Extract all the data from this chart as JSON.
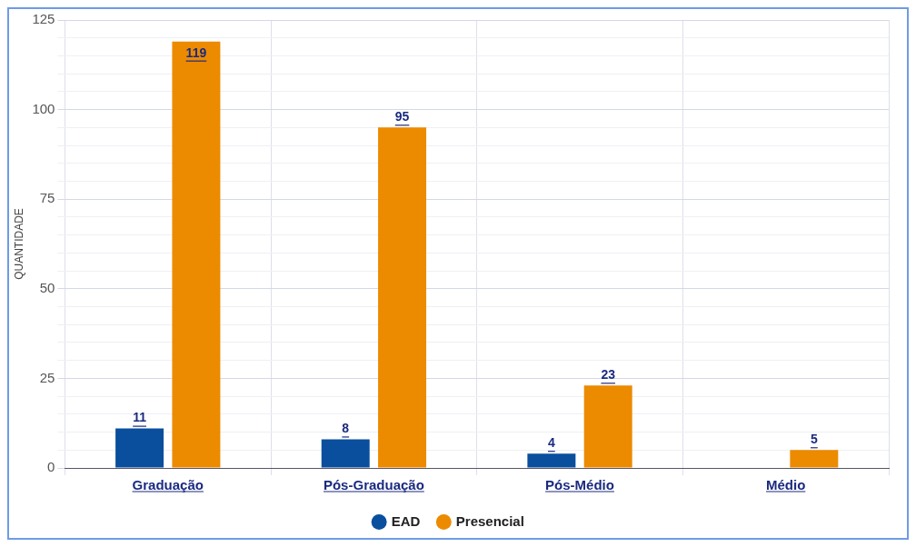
{
  "chart_data": {
    "type": "bar",
    "ylabel": "QUANTIDADE",
    "categories": [
      "Graduação",
      "Pós-Graduação",
      "Pós-Médio",
      "Médio"
    ],
    "series": [
      {
        "name": "EAD",
        "color": "#0a4f9e",
        "values": [
          11,
          8,
          4,
          null
        ]
      },
      {
        "name": "Presencial",
        "color": "#ec8a00",
        "values": [
          119,
          95,
          23,
          5
        ]
      }
    ],
    "ylim": [
      0,
      125
    ],
    "yticks": [
      0,
      {
        "value": 5,
        "label": null
      },
      {
        "value": 10,
        "label": null
      },
      {
        "value": 15,
        "label": null
      },
      {
        "value": 20,
        "label": null
      },
      25,
      {
        "value": 30,
        "label": null
      },
      {
        "value": 35,
        "label": null
      },
      {
        "value": 40,
        "label": null
      },
      {
        "value": 45,
        "label": null
      },
      50,
      {
        "value": 55,
        "label": null
      },
      {
        "value": 60,
        "label": null
      },
      {
        "value": 65,
        "label": null
      },
      {
        "value": 70,
        "label": null
      },
      75,
      {
        "value": 80,
        "label": null
      },
      {
        "value": 85,
        "label": null
      },
      {
        "value": 90,
        "label": null
      },
      {
        "value": 95,
        "label": null
      },
      100,
      {
        "value": 105,
        "label": null
      },
      {
        "value": 110,
        "label": null
      },
      {
        "value": 115,
        "label": null
      },
      {
        "value": 120,
        "label": null
      },
      125
    ],
    "grid": true,
    "legend": "bottom",
    "data_labels": true
  }
}
